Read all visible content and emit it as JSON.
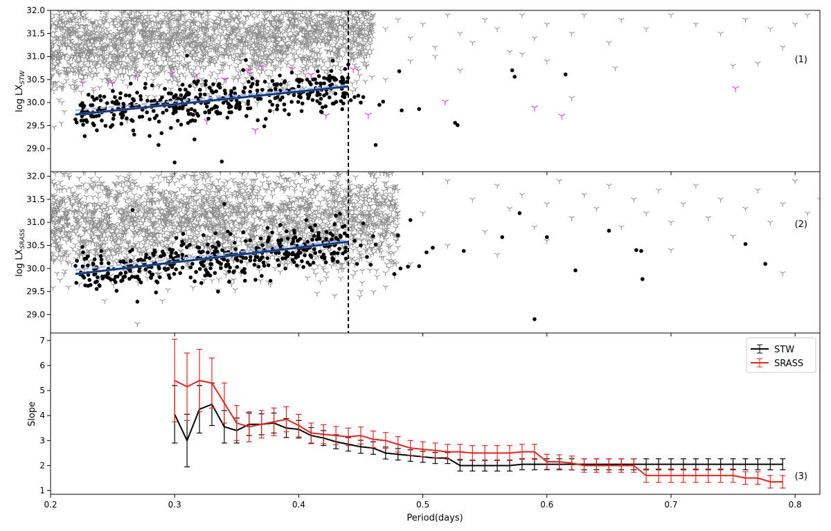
{
  "colors": {
    "upper_limit": "#8c8c8c",
    "detection": "#000000",
    "outlier_limit": "#e020e0",
    "fit_line": "#1a1a4a",
    "fit_line_alt": "#3a7fd0",
    "fit_band": "#a9b8ec",
    "stw": "#000000",
    "srass": "#e8231d"
  },
  "chart_data": [
    {
      "id": "panel1",
      "type": "scatter",
      "ylabel_main": "log LX",
      "ylabel_sub": "STW",
      "panel_label": "(1)",
      "xlim": [
        0.2,
        0.82
      ],
      "ylim": [
        28.5,
        32.0
      ],
      "yticks": [
        "29.0",
        "29.5",
        "30.0",
        "30.5",
        "31.0",
        "31.5",
        "32.0"
      ],
      "cutoff_period": 0.44,
      "fit": {
        "x": [
          0.22,
          0.44
        ],
        "y": [
          29.74,
          30.35
        ],
        "band_y": [
          29.83,
          30.38
        ]
      },
      "grey_cloud": {
        "x_range": [
          0.2,
          0.46
        ],
        "y_center_start": 31.2,
        "y_center_end": 31.6,
        "spread": 0.5
      },
      "grey_sparse": [
        [
          0.46,
          31.9
        ],
        [
          0.47,
          31.6
        ],
        [
          0.48,
          31.8
        ],
        [
          0.49,
          31.4
        ],
        [
          0.5,
          31.7
        ],
        [
          0.51,
          31.2
        ],
        [
          0.52,
          31.9
        ],
        [
          0.53,
          31.5
        ],
        [
          0.54,
          31.3
        ],
        [
          0.55,
          31.8
        ],
        [
          0.56,
          31.6
        ],
        [
          0.57,
          31.1
        ],
        [
          0.58,
          31.9
        ],
        [
          0.59,
          31.4
        ],
        [
          0.6,
          31.7
        ],
        [
          0.62,
          31.5
        ],
        [
          0.63,
          31.9
        ],
        [
          0.65,
          31.3
        ],
        [
          0.66,
          31.8
        ],
        [
          0.68,
          31.6
        ],
        [
          0.7,
          31.9
        ],
        [
          0.72,
          31.7
        ],
        [
          0.74,
          31.5
        ],
        [
          0.76,
          31.8
        ],
        [
          0.78,
          31.6
        ],
        [
          0.8,
          31.7
        ],
        [
          0.81,
          31.9
        ],
        [
          0.49,
          30.9
        ],
        [
          0.53,
          30.7
        ],
        [
          0.6,
          30.9
        ],
        [
          0.62,
          30.1
        ],
        [
          0.655,
          30.75
        ],
        [
          0.75,
          30.8
        ],
        [
          0.77,
          30.85
        ],
        [
          0.51,
          31.0
        ],
        [
          0.47,
          30.5
        ],
        [
          0.58,
          31.05
        ],
        [
          0.79,
          31.2
        ]
      ],
      "detections_dense": {
        "x_range": [
          0.22,
          0.44
        ],
        "y_start": 29.74,
        "y_end": 30.35,
        "scatter": 0.3,
        "count": 420
      },
      "detections_sparse": [
        [
          0.445,
          30.12
        ],
        [
          0.45,
          30.0
        ],
        [
          0.448,
          30.15
        ],
        [
          0.452,
          30.12
        ],
        [
          0.442,
          30.05
        ],
        [
          0.465,
          29.95
        ],
        [
          0.468,
          30.02
        ],
        [
          0.462,
          29.08
        ],
        [
          0.481,
          30.68
        ],
        [
          0.483,
          29.83
        ],
        [
          0.497,
          29.86
        ],
        [
          0.526,
          29.56
        ],
        [
          0.528,
          29.51
        ],
        [
          0.572,
          30.7
        ],
        [
          0.574,
          30.56
        ],
        [
          0.615,
          30.61
        ],
        [
          0.3,
          28.7
        ],
        [
          0.338,
          28.72
        ],
        [
          0.287,
          29.08
        ],
        [
          0.316,
          29.2
        ],
        [
          0.31,
          31.02
        ],
        [
          0.297,
          29.45
        ]
      ],
      "outliers_magenta": [
        [
          0.226,
          30.42
        ],
        [
          0.25,
          30.43
        ],
        [
          0.27,
          30.55
        ],
        [
          0.297,
          30.62
        ],
        [
          0.318,
          30.6
        ],
        [
          0.32,
          30.08
        ],
        [
          0.326,
          29.6
        ],
        [
          0.365,
          29.4
        ],
        [
          0.37,
          30.78
        ],
        [
          0.395,
          30.73
        ],
        [
          0.41,
          30.6
        ],
        [
          0.422,
          29.72
        ],
        [
          0.456,
          29.73
        ],
        [
          0.518,
          30.02
        ],
        [
          0.59,
          29.89
        ],
        [
          0.612,
          29.71
        ],
        [
          0.752,
          30.31
        ],
        [
          0.444,
          30.72
        ],
        [
          0.34,
          30.5
        ],
        [
          0.36,
          30.7
        ],
        [
          0.26,
          29.9
        ]
      ]
    },
    {
      "id": "panel2",
      "type": "scatter",
      "ylabel_main": "log LX",
      "ylabel_sub": "SRASS",
      "panel_label": "(2)",
      "xlim": [
        0.2,
        0.82
      ],
      "ylim": [
        28.6,
        32.1
      ],
      "yticks": [
        "29.0",
        "29.5",
        "30.0",
        "30.5",
        "31.0",
        "31.5",
        "32.0"
      ],
      "cutoff_period": 0.44,
      "fit": {
        "x": [
          0.22,
          0.44
        ],
        "y": [
          29.88,
          30.58
        ],
        "band_y": [
          29.97,
          30.62
        ]
      },
      "grey_cloud": {
        "x_range": [
          0.2,
          0.48
        ],
        "y_center_start": 31.0,
        "y_center_end": 31.1,
        "spread": 0.55
      },
      "grey_sparse": [
        [
          0.48,
          31.7
        ],
        [
          0.5,
          31.2
        ],
        [
          0.52,
          31.9
        ],
        [
          0.54,
          31.5
        ],
        [
          0.55,
          30.8
        ],
        [
          0.56,
          31.8
        ],
        [
          0.57,
          31.3
        ],
        [
          0.58,
          31.6
        ],
        [
          0.59,
          30.9
        ],
        [
          0.6,
          31.4
        ],
        [
          0.61,
          31.9
        ],
        [
          0.62,
          31.1
        ],
        [
          0.63,
          31.6
        ],
        [
          0.64,
          31.3
        ],
        [
          0.65,
          31.8
        ],
        [
          0.66,
          30.9
        ],
        [
          0.67,
          31.5
        ],
        [
          0.68,
          31.2
        ],
        [
          0.69,
          31.7
        ],
        [
          0.7,
          31.0
        ],
        [
          0.71,
          31.4
        ],
        [
          0.72,
          31.8
        ],
        [
          0.73,
          31.1
        ],
        [
          0.74,
          31.5
        ],
        [
          0.75,
          30.7
        ],
        [
          0.76,
          31.3
        ],
        [
          0.77,
          31.7
        ],
        [
          0.78,
          31.0
        ],
        [
          0.79,
          31.4
        ],
        [
          0.8,
          31.9
        ],
        [
          0.81,
          31.2
        ],
        [
          0.82,
          31.5
        ],
        [
          0.52,
          30.5
        ],
        [
          0.56,
          30.3
        ],
        [
          0.49,
          30.1
        ],
        [
          0.6,
          30.6
        ],
        [
          0.7,
          30.4
        ],
        [
          0.79,
          29.9
        ],
        [
          0.27,
          28.8
        ],
        [
          0.45,
          29.5
        ],
        [
          0.47,
          29.6
        ],
        [
          0.29,
          29.3
        ]
      ],
      "detections_dense": {
        "x_range": [
          0.22,
          0.44
        ],
        "y_start": 29.88,
        "y_end": 30.58,
        "scatter": 0.32,
        "count": 420
      },
      "detections_sparse": [
        [
          0.445,
          30.6
        ],
        [
          0.45,
          30.5
        ],
        [
          0.452,
          30.98
        ],
        [
          0.455,
          30.25
        ],
        [
          0.447,
          30.1
        ],
        [
          0.46,
          30.7
        ],
        [
          0.462,
          30.52
        ],
        [
          0.458,
          30.08
        ],
        [
          0.48,
          30.72
        ],
        [
          0.477,
          29.88
        ],
        [
          0.482,
          30.0
        ],
        [
          0.49,
          31.05
        ],
        [
          0.488,
          30.04
        ],
        [
          0.497,
          30.05
        ],
        [
          0.503,
          30.35
        ],
        [
          0.508,
          30.45
        ],
        [
          0.533,
          30.38
        ],
        [
          0.564,
          30.68
        ],
        [
          0.578,
          31.2
        ],
        [
          0.59,
          28.9
        ],
        [
          0.6,
          30.68
        ],
        [
          0.623,
          29.96
        ],
        [
          0.65,
          30.82
        ],
        [
          0.672,
          30.4
        ],
        [
          0.676,
          30.38
        ],
        [
          0.677,
          29.77
        ],
        [
          0.76,
          30.53
        ],
        [
          0.776,
          30.1
        ],
        [
          0.34,
          31.4
        ],
        [
          0.266,
          31.27
        ],
        [
          0.27,
          29.28
        ],
        [
          0.285,
          29.48
        ],
        [
          0.335,
          29.5
        ]
      ]
    },
    {
      "id": "panel3",
      "type": "line",
      "xlabel": "Period(days)",
      "ylabel": "Slope",
      "panel_label": "(3)",
      "xlim": [
        0.2,
        0.82
      ],
      "ylim": [
        0.85,
        7.3
      ],
      "xticks": [
        "0.2",
        "0.3",
        "0.4",
        "0.5",
        "0.6",
        "0.7",
        "0.8"
      ],
      "yticks": [
        "1",
        "2",
        "3",
        "4",
        "5",
        "6",
        "7"
      ],
      "legend": {
        "position": "top-right"
      },
      "series": [
        {
          "name": "STW",
          "x": [
            0.3,
            0.31,
            0.32,
            0.33,
            0.34,
            0.35,
            0.36,
            0.37,
            0.38,
            0.39,
            0.4,
            0.41,
            0.42,
            0.43,
            0.44,
            0.45,
            0.46,
            0.47,
            0.48,
            0.49,
            0.5,
            0.51,
            0.52,
            0.53,
            0.54,
            0.55,
            0.56,
            0.57,
            0.58,
            0.59,
            0.6,
            0.61,
            0.62,
            0.63,
            0.64,
            0.65,
            0.66,
            0.67,
            0.68,
            0.69,
            0.7,
            0.71,
            0.72,
            0.73,
            0.74,
            0.75,
            0.76,
            0.77,
            0.78,
            0.79
          ],
          "y": [
            4.05,
            3.0,
            4.25,
            4.45,
            3.55,
            3.4,
            3.65,
            3.65,
            3.7,
            3.5,
            3.45,
            3.2,
            3.1,
            2.95,
            2.85,
            2.75,
            2.7,
            2.5,
            2.45,
            2.4,
            2.35,
            2.3,
            2.3,
            2.0,
            2.0,
            2.0,
            2.0,
            2.0,
            2.05,
            2.05,
            2.05,
            2.05,
            2.05,
            2.05,
            2.05,
            2.05,
            2.05,
            2.05,
            2.05,
            2.05,
            2.05,
            2.05,
            2.05,
            2.05,
            2.05,
            2.05,
            2.05,
            2.05,
            2.05,
            2.05
          ],
          "err": [
            1.15,
            1.05,
            0.95,
            0.85,
            0.65,
            0.5,
            0.45,
            0.42,
            0.4,
            0.38,
            0.35,
            0.32,
            0.3,
            0.28,
            0.27,
            0.26,
            0.25,
            0.24,
            0.23,
            0.23,
            0.22,
            0.22,
            0.22,
            0.22,
            0.22,
            0.22,
            0.22,
            0.22,
            0.22,
            0.22,
            0.22,
            0.22,
            0.22,
            0.22,
            0.22,
            0.22,
            0.22,
            0.22,
            0.22,
            0.22,
            0.22,
            0.22,
            0.22,
            0.22,
            0.22,
            0.22,
            0.22,
            0.22,
            0.22,
            0.22
          ]
        },
        {
          "name": "SRASS",
          "x": [
            0.3,
            0.31,
            0.32,
            0.33,
            0.34,
            0.35,
            0.36,
            0.37,
            0.38,
            0.39,
            0.4,
            0.41,
            0.42,
            0.43,
            0.44,
            0.45,
            0.46,
            0.47,
            0.48,
            0.49,
            0.5,
            0.51,
            0.52,
            0.53,
            0.54,
            0.55,
            0.56,
            0.57,
            0.58,
            0.59,
            0.6,
            0.61,
            0.62,
            0.63,
            0.64,
            0.65,
            0.66,
            0.67,
            0.68,
            0.69,
            0.7,
            0.71,
            0.72,
            0.73,
            0.74,
            0.75,
            0.76,
            0.77,
            0.78,
            0.79
          ],
          "y": [
            5.4,
            5.15,
            5.4,
            5.3,
            4.5,
            3.7,
            3.55,
            3.65,
            3.75,
            3.85,
            3.6,
            3.3,
            3.25,
            3.2,
            3.15,
            3.2,
            3.05,
            3.0,
            2.85,
            2.7,
            2.65,
            2.6,
            2.55,
            2.55,
            2.5,
            2.5,
            2.5,
            2.5,
            2.55,
            2.55,
            2.15,
            2.15,
            2.1,
            2.0,
            2.0,
            2.0,
            2.0,
            2.0,
            1.6,
            1.6,
            1.6,
            1.6,
            1.6,
            1.6,
            1.6,
            1.6,
            1.5,
            1.5,
            1.35,
            1.35
          ],
          "err": [
            1.65,
            1.35,
            1.25,
            1.0,
            0.8,
            0.7,
            0.6,
            0.55,
            0.55,
            0.5,
            0.45,
            0.4,
            0.38,
            0.36,
            0.35,
            0.34,
            0.33,
            0.32,
            0.31,
            0.3,
            0.3,
            0.3,
            0.3,
            0.3,
            0.3,
            0.3,
            0.3,
            0.3,
            0.3,
            0.3,
            0.3,
            0.28,
            0.28,
            0.27,
            0.27,
            0.27,
            0.27,
            0.27,
            0.27,
            0.27,
            0.27,
            0.27,
            0.27,
            0.27,
            0.27,
            0.27,
            0.25,
            0.25,
            0.25,
            0.25
          ]
        }
      ]
    }
  ]
}
